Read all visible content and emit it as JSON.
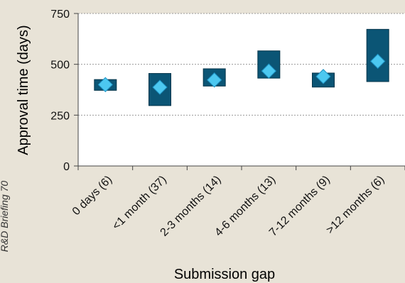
{
  "chart_data": {
    "type": "box",
    "categories": [
      "0 days (6)",
      "<1 month (37)",
      "2-3 months (14)",
      "4-6 months (13)",
      "7-12 months (9)",
      ">12 months (6)"
    ],
    "series": [
      {
        "name": "range_low",
        "values": [
          372,
          297,
          393,
          432,
          388,
          415
        ]
      },
      {
        "name": "range_high",
        "values": [
          425,
          455,
          478,
          566,
          457,
          672
        ]
      },
      {
        "name": "mean",
        "values": [
          400,
          387,
          423,
          467,
          440,
          515
        ]
      }
    ],
    "xlabel": "Submission gap",
    "ylabel": "Approval time (days)",
    "yticks": [
      0,
      250,
      500,
      750
    ],
    "ylim": [
      0,
      750
    ],
    "grid": true,
    "side_note": "R&D Briefing 70",
    "colors": {
      "box_fill": "#0b5575",
      "box_stroke": "#05354a",
      "marker_fill": "#4cc8f0",
      "marker_stroke": "#1b8fc0",
      "plot_bg": "#ffffff",
      "page_bg": "#e8e3d7"
    }
  }
}
